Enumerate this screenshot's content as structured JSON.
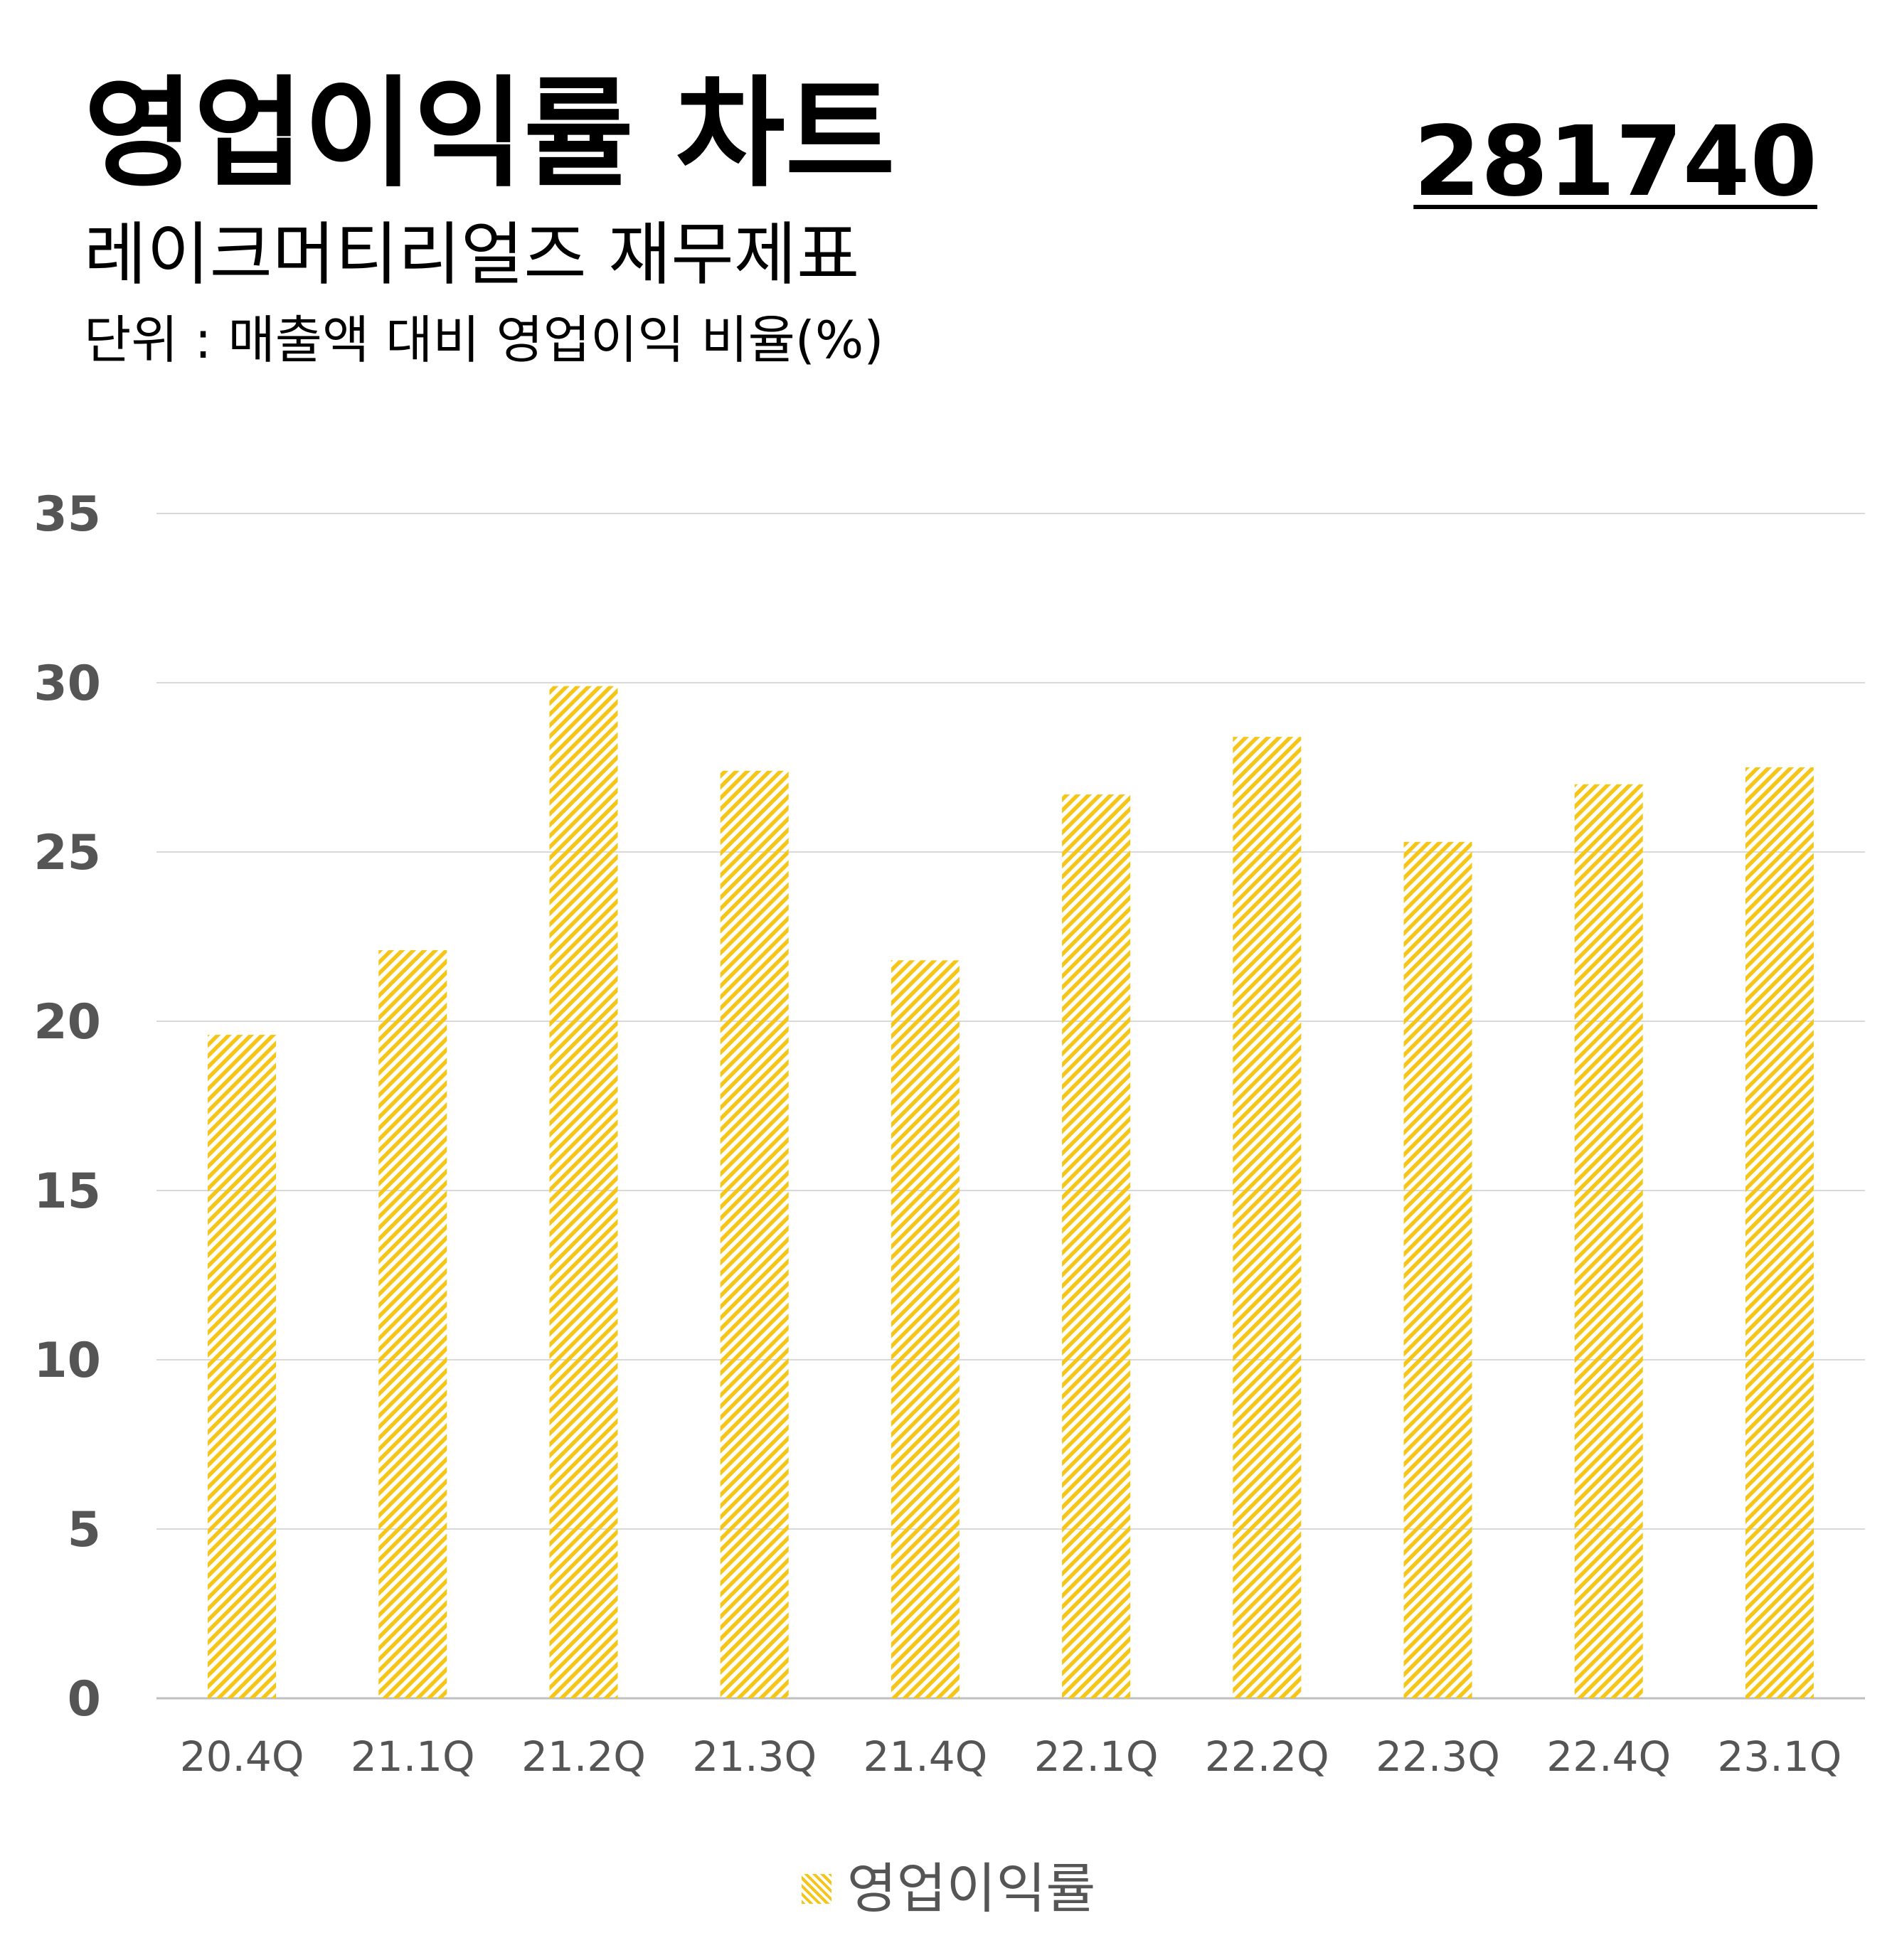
{
  "header": {
    "title": "영업이익률 차트",
    "subtitle": "레이크머티리얼즈 재무제표",
    "unit": "단위 : 매출액 대비 영업이익 비율(%)",
    "code": "281740"
  },
  "colors": {
    "bar": "#f5c518",
    "grid": "#d9d9d9",
    "axis_text": "#555555"
  },
  "chart_data": {
    "type": "bar",
    "categories": [
      "20.4Q",
      "21.1Q",
      "21.2Q",
      "21.3Q",
      "21.4Q",
      "22.1Q",
      "22.2Q",
      "22.3Q",
      "22.4Q",
      "23.1Q"
    ],
    "series": [
      {
        "name": "영업이익률",
        "values": [
          19.6,
          22.1,
          29.9,
          27.4,
          21.8,
          26.7,
          28.4,
          25.3,
          27.0,
          27.5
        ]
      }
    ],
    "ylim": [
      0,
      35
    ],
    "yticks": [
      0,
      5,
      10,
      15,
      20,
      25,
      30,
      35
    ],
    "grid": true,
    "legend_position": "bottom-center",
    "bar_fill": "diagonal-hatch"
  }
}
